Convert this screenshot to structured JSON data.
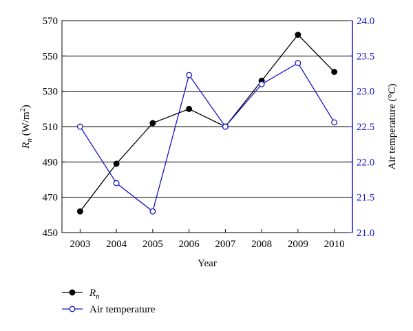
{
  "chart_data": {
    "type": "line",
    "categories": [
      "2003",
      "2004",
      "2005",
      "2006",
      "2007",
      "2008",
      "2009",
      "2010"
    ],
    "xlabel": "Year",
    "ylabel_left": {
      "main": "R",
      "sub": "n",
      "unit_pre": " (W/m",
      "sup": "2",
      "unit_post": ")"
    },
    "ylabel_right": "Air temperature (°C)",
    "y_left": {
      "min": 450,
      "max": 570,
      "ticks": [
        "450",
        "470",
        "490",
        "510",
        "530",
        "550",
        "570"
      ]
    },
    "y_right": {
      "min": 21.0,
      "max": 24.0,
      "ticks": [
        "21.0",
        "21.5",
        "22.0",
        "22.5",
        "23.0",
        "23.5",
        "24.0"
      ]
    },
    "grid": "horizontal",
    "legend_position": "bottom-left",
    "series": [
      {
        "name": "Rn",
        "legend_label": {
          "main": "R",
          "sub": "n"
        },
        "axis": "left",
        "color": "#000000",
        "marker": "filled-circle",
        "values": [
          462,
          489,
          512,
          520,
          510,
          536,
          562,
          541
        ]
      },
      {
        "name": "Air temperature",
        "legend_label": {
          "main": "Air temperature",
          "sub": ""
        },
        "axis": "right",
        "color": "#1515c8",
        "marker": "open-circle",
        "values": [
          22.5,
          21.7,
          21.3,
          23.23,
          22.5,
          23.1,
          23.4,
          22.56
        ]
      }
    ]
  }
}
